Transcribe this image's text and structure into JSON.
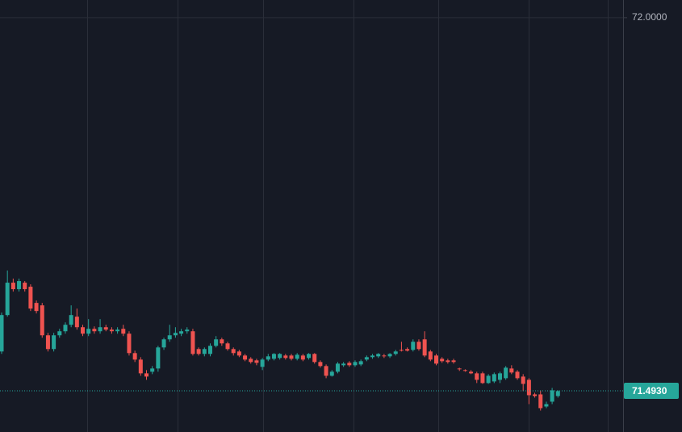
{
  "chart_data": {
    "type": "candlestick",
    "categories": [
      null,
      null,
      null,
      null,
      null,
      null,
      null,
      null,
      null,
      null,
      null,
      null,
      null,
      null,
      null,
      null,
      null,
      null,
      null,
      null,
      null,
      null,
      null,
      null,
      null,
      null,
      null,
      null,
      null,
      null,
      null,
      null,
      null,
      null,
      null,
      null,
      null,
      null,
      null,
      null,
      null,
      null,
      null,
      null,
      null,
      null,
      null,
      null,
      null,
      null,
      null,
      null,
      null,
      null,
      null,
      null,
      null,
      null,
      null,
      null,
      null,
      null,
      null,
      null,
      null,
      null,
      null,
      null,
      null,
      null,
      null,
      null,
      null,
      null,
      null,
      null,
      null,
      null,
      null,
      null,
      null,
      null,
      null,
      null,
      null,
      null,
      null,
      null,
      null,
      null,
      null,
      null,
      null,
      null,
      null,
      null,
      null
    ],
    "open": [
      71.5464,
      71.5959,
      71.6399,
      71.6311,
      71.6399,
      71.6344,
      71.6124,
      71.6091,
      71.5684,
      71.5497,
      71.5684,
      71.5739,
      71.5827,
      71.5937,
      71.5794,
      71.5706,
      71.5772,
      71.5739,
      71.5794,
      71.5761,
      71.5739,
      71.5772,
      71.5706,
      71.5442,
      71.5354,
      71.5167,
      71.5189,
      71.5233,
      71.5519,
      71.5629,
      71.5684,
      71.5706,
      71.5739,
      71.5739,
      71.5497,
      71.5431,
      71.5431,
      71.5541,
      71.5629,
      71.5574,
      71.5497,
      71.5464,
      71.5409,
      71.5365,
      71.5343,
      71.5255,
      71.5354,
      71.5365,
      71.5376,
      71.5409,
      71.5409,
      71.5365,
      71.5409,
      71.5376,
      71.5431,
      71.5321,
      71.5266,
      71.5134,
      71.5189,
      71.5277,
      71.531,
      71.5277,
      71.5288,
      71.5354,
      71.5387,
      71.5398,
      71.5409,
      71.5398,
      71.5431,
      71.5486,
      71.5497,
      71.5486,
      71.5596,
      71.5629,
      71.5464,
      71.5409,
      71.5365,
      71.5343,
      71.5343,
      71.5233,
      71.5211,
      71.5189,
      71.5167,
      71.5167,
      71.5035,
      71.5057,
      71.5079,
      71.5101,
      71.5233,
      71.5189,
      71.5123,
      71.5079,
      71.4881,
      71.4881,
      71.4716,
      71.4782,
      71.4859
    ],
    "high": [
      71.5992,
      71.6564,
      71.6454,
      71.6454,
      71.6421,
      71.6377,
      71.6157,
      71.6124,
      71.5717,
      71.5717,
      71.5772,
      71.586,
      71.6091,
      71.6047,
      71.5827,
      71.5904,
      71.5805,
      71.5904,
      71.5827,
      71.5794,
      71.5794,
      71.5827,
      71.5739,
      71.5475,
      71.5387,
      71.5211,
      71.5266,
      71.5541,
      71.5651,
      71.5827,
      71.5794,
      71.5772,
      71.5794,
      71.5772,
      71.5519,
      71.5519,
      71.5574,
      71.5673,
      71.5651,
      71.5596,
      71.5519,
      71.5486,
      71.5431,
      71.5387,
      71.5365,
      71.5376,
      71.5431,
      71.5442,
      71.5442,
      71.5431,
      71.5431,
      71.5442,
      71.5431,
      71.5442,
      71.5442,
      71.5343,
      71.5288,
      71.5211,
      71.5321,
      71.5321,
      71.5332,
      71.5343,
      71.5354,
      71.5409,
      71.5431,
      71.5442,
      71.5431,
      71.5442,
      71.5486,
      71.5596,
      71.5519,
      71.5629,
      71.5629,
      71.5739,
      71.5486,
      71.5431,
      71.5387,
      71.5365,
      71.5365,
      71.5244,
      71.5222,
      71.5211,
      71.5189,
      71.5189,
      71.5156,
      71.5178,
      71.5189,
      71.5266,
      71.5277,
      71.5211,
      71.5156,
      71.5101,
      71.4903,
      71.4936,
      71.4782,
      71.4969,
      71.4936
    ],
    "low": [
      71.5431,
      71.5937,
      71.6278,
      71.6278,
      71.6278,
      71.6014,
      71.5981,
      71.5651,
      71.5464,
      71.5464,
      71.5651,
      71.5706,
      71.5794,
      71.5761,
      71.5673,
      71.5673,
      71.5706,
      71.5706,
      71.5739,
      71.5706,
      71.5706,
      71.5673,
      71.5409,
      71.5321,
      71.5134,
      71.5079,
      71.5156,
      71.5189,
      71.5486,
      71.5596,
      71.5651,
      71.5673,
      71.5706,
      71.5409,
      71.5409,
      71.5398,
      71.5398,
      71.5519,
      71.5541,
      71.5475,
      71.5409,
      71.5387,
      71.5332,
      71.5299,
      71.5277,
      71.5211,
      71.5332,
      71.5343,
      71.5354,
      71.5354,
      71.5343,
      71.5343,
      71.5332,
      71.5354,
      71.5299,
      71.5244,
      71.5101,
      71.5123,
      71.5167,
      71.5255,
      71.5255,
      71.5255,
      71.5266,
      71.5332,
      71.5365,
      71.5376,
      71.5376,
      71.5376,
      71.5409,
      71.5464,
      71.5464,
      71.5464,
      71.5475,
      71.5387,
      71.5332,
      71.5277,
      71.531,
      71.5299,
      71.5299,
      71.52,
      71.5189,
      71.5156,
      71.5035,
      71.5024,
      71.5024,
      71.5035,
      71.5035,
      71.5079,
      71.5156,
      71.5079,
      71.4925,
      71.4749,
      71.4837,
      71.4661,
      71.4694,
      71.4749,
      71.4837
    ],
    "close": [
      71.5959,
      71.6399,
      71.6311,
      71.6421,
      71.6311,
      71.6047,
      71.6014,
      71.5684,
      71.5497,
      71.5684,
      71.5739,
      71.5827,
      71.5959,
      71.5794,
      71.5706,
      71.5772,
      71.5739,
      71.5794,
      71.5761,
      71.5739,
      71.5761,
      71.5706,
      71.5442,
      71.5354,
      71.5167,
      71.5123,
      71.5233,
      71.5519,
      71.5629,
      71.5684,
      71.5717,
      71.5739,
      71.5761,
      71.5431,
      71.5431,
      71.5497,
      71.5541,
      71.5629,
      71.5574,
      71.5497,
      71.5442,
      71.5409,
      71.5354,
      71.5321,
      71.531,
      71.5354,
      71.5398,
      71.5431,
      71.5431,
      71.5376,
      71.5365,
      71.542,
      71.5354,
      71.5431,
      71.5321,
      71.5266,
      71.5134,
      71.5189,
      71.5299,
      71.5299,
      71.5277,
      71.5321,
      71.5332,
      71.5387,
      71.5409,
      71.5431,
      71.5398,
      71.5431,
      71.5464,
      71.5475,
      71.5475,
      71.5596,
      71.5497,
      71.5409,
      71.5354,
      71.5299,
      71.5332,
      71.5321,
      71.5321,
      71.5222,
      71.52,
      71.5167,
      71.5079,
      71.5035,
      71.5134,
      71.5156,
      71.5167,
      71.5244,
      71.5178,
      71.5101,
      71.5024,
      71.487,
      71.4859,
      71.4694,
      71.4749,
      71.4936,
      71.4925
    ],
    "up_color": "#26a69a",
    "down_color": "#ef5350",
    "ylim": [
      71.437,
      72.024
    ],
    "yticks": [
      {
        "value": 72,
        "label": "72.0000"
      }
    ],
    "grid": true,
    "last_price": {
      "value": 71.493,
      "label": "71.4930"
    }
  }
}
